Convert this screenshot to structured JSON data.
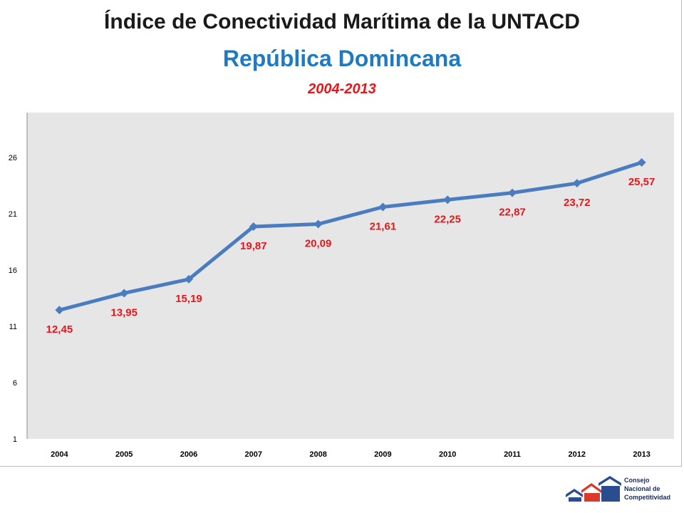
{
  "header": {
    "title": "Índice de Conectividad Marítima de la UNTACD",
    "subtitle": "República Domincana",
    "period": "2004-2013"
  },
  "colors": {
    "line": "#4a7cc0",
    "label": "#e8161b",
    "plot_bg": "#e6e6e6",
    "subtitle": "#1f7ac4"
  },
  "chart_data": {
    "type": "line",
    "categories": [
      "2004",
      "2005",
      "2006",
      "2007",
      "2008",
      "2009",
      "2010",
      "2011",
      "2012",
      "2013"
    ],
    "series": [
      {
        "values": [
          12.45,
          13.95,
          15.19,
          19.87,
          20.09,
          21.61,
          22.25,
          22.87,
          23.72,
          25.57
        ],
        "labels": [
          "12,45",
          "13,95",
          "15,19",
          "19,87",
          "20,09",
          "21,61",
          "22,25",
          "22,87",
          "23,72",
          "25,57"
        ]
      }
    ],
    "yticks": [
      "1",
      "6",
      "11",
      "16",
      "21",
      "26"
    ],
    "ylim": [
      1,
      30
    ],
    "grid": false,
    "legend": false,
    "marker": "diamond"
  },
  "logo": {
    "lines": [
      "Consejo",
      "Nacional de",
      "Competitividad"
    ]
  }
}
